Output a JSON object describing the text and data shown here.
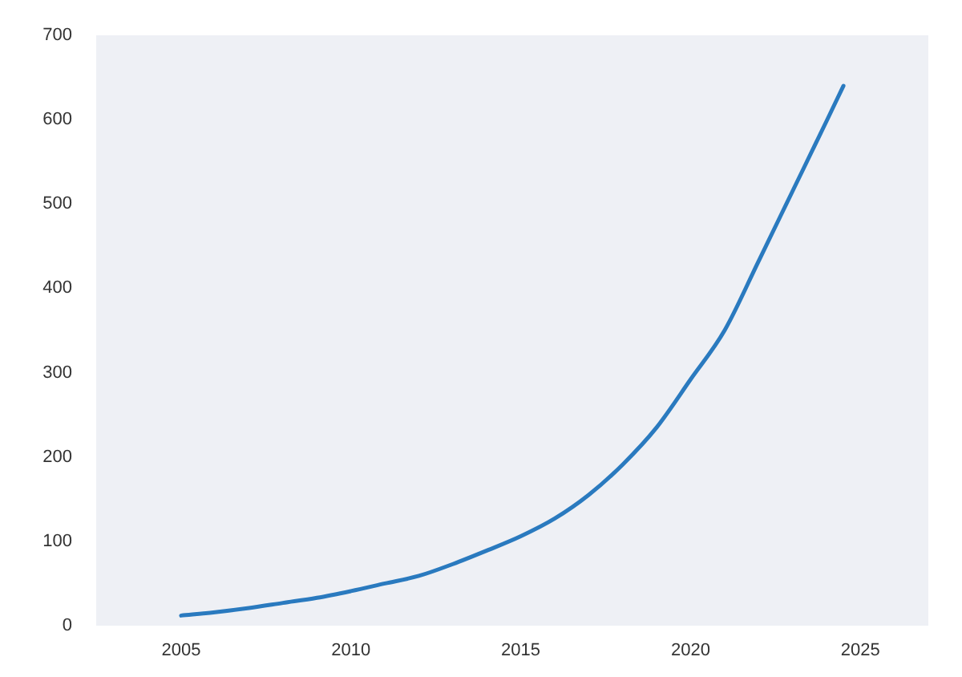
{
  "chart_data": {
    "type": "line",
    "x": [
      2005,
      2006,
      2007,
      2008,
      2009,
      2010,
      2011,
      2012,
      2013,
      2014,
      2015,
      2016,
      2017,
      2018,
      2019,
      2020,
      2021,
      2022,
      2023,
      2024,
      2024.5
    ],
    "series": [
      {
        "color": "#2a7abf",
        "values": [
          12,
          16,
          21,
          27,
          33,
          41,
          50,
          59,
          73,
          89,
          106,
          127,
          155,
          191,
          235,
          292,
          350,
          432,
          515,
          598,
          640
        ]
      }
    ],
    "xlim": [
      2002.5,
      2027
    ],
    "xticks": [
      2005,
      2010,
      2015,
      2020,
      2025
    ],
    "ylim": [
      0,
      700
    ],
    "yticks": [
      0,
      100,
      200,
      300,
      400,
      500,
      600,
      700
    ]
  }
}
